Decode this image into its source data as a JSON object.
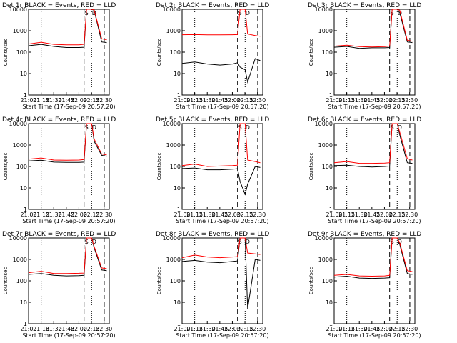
{
  "chart_data": [
    {
      "type": "line",
      "title": "Det 1r BLACK = Events, RED = LLD",
      "xlabel": "Start Time (17-Sep-09 20:57:20)",
      "ylabel": "Counts/sec",
      "xticks": [
        "21:00",
        "21:15",
        "21:30",
        "21:45",
        "22:00",
        "22:15",
        "22:30"
      ],
      "yticks": [
        "1",
        "10",
        "100",
        "1000",
        "10000"
      ],
      "ylim": [
        1,
        10000
      ],
      "yscale": "log",
      "markers": [
        "S",
        "D"
      ],
      "series": [
        {
          "color": "#000000",
          "x": [
            21.0,
            21.25,
            21.5,
            21.75,
            22.0,
            22.1,
            22.15,
            22.25,
            22.3,
            22.45,
            22.55
          ],
          "y": [
            200,
            230,
            185,
            165,
            165,
            170,
            10000,
            10000,
            9000,
            300,
            280
          ]
        },
        {
          "color": "#ff0000",
          "x": [
            21.0,
            21.25,
            21.5,
            21.75,
            22.0,
            22.1,
            22.15,
            22.25,
            22.3,
            22.45,
            22.55
          ],
          "y": [
            240,
            290,
            230,
            220,
            220,
            230,
            10000,
            10000,
            9500,
            420,
            380
          ]
        }
      ]
    },
    {
      "type": "line",
      "title": "Det 2r BLACK = Events, RED = LLD",
      "xlabel": "Start Time (17-Sep-09 20:57:20)",
      "ylabel": "Counts/sec",
      "xticks": [
        "21:00",
        "21:15",
        "21:30",
        "21:45",
        "22:00",
        "22:15",
        "22:30"
      ],
      "yticks": [
        "1",
        "10",
        "100",
        "1000",
        "10000"
      ],
      "ylim": [
        1,
        10000
      ],
      "yscale": "log",
      "markers": [
        "S",
        "D"
      ],
      "series": [
        {
          "color": "#000000",
          "x": [
            21.0,
            21.25,
            21.5,
            21.75,
            22.0,
            22.1,
            22.15,
            22.25,
            22.3,
            22.45,
            22.55
          ],
          "y": [
            30,
            35,
            28,
            25,
            28,
            32,
            20,
            15,
            4,
            50,
            40
          ]
        },
        {
          "color": "#ff0000",
          "x": [
            21.0,
            21.25,
            21.5,
            21.75,
            22.0,
            22.1,
            22.15,
            22.25,
            22.3,
            22.45,
            22.55
          ],
          "y": [
            650,
            660,
            640,
            640,
            650,
            660,
            10000,
            10000,
            700,
            600,
            550
          ]
        }
      ]
    },
    {
      "type": "line",
      "title": "Det 3r BLACK = Events, RED = LLD",
      "xlabel": "Start Time (17-Sep-09 20:57:20)",
      "ylabel": "Counts/sec",
      "xticks": [
        "21:00",
        "21:15",
        "21:30",
        "21:45",
        "22:00",
        "22:15",
        "22:30"
      ],
      "yticks": [
        "1",
        "10",
        "100",
        "1000",
        "10000"
      ],
      "ylim": [
        1,
        10000
      ],
      "yscale": "log",
      "markers": [
        "S",
        "D"
      ],
      "series": [
        {
          "color": "#000000",
          "x": [
            21.0,
            21.25,
            21.5,
            21.75,
            22.0,
            22.1,
            22.15,
            22.25,
            22.3,
            22.45,
            22.55
          ],
          "y": [
            170,
            185,
            150,
            160,
            160,
            165,
            10000,
            10000,
            7000,
            300,
            280
          ]
        },
        {
          "color": "#ff0000",
          "x": [
            21.0,
            21.25,
            21.5,
            21.75,
            22.0,
            22.1,
            22.15,
            22.25,
            22.3,
            22.45,
            22.55
          ],
          "y": [
            190,
            210,
            180,
            175,
            180,
            190,
            10000,
            10000,
            9000,
            360,
            320
          ]
        }
      ]
    },
    {
      "type": "line",
      "title": "Det 4r BLACK = Events, RED = LLD",
      "xlabel": "Start Time (17-Sep-09 20:57:20)",
      "ylabel": "Counts/sec",
      "xticks": [
        "21:00",
        "21:15",
        "21:30",
        "21:45",
        "22:00",
        "22:15",
        "22:30"
      ],
      "yticks": [
        "1",
        "10",
        "100",
        "1000",
        "10000"
      ],
      "ylim": [
        1,
        10000
      ],
      "yscale": "log",
      "markers": [
        "S",
        "D"
      ],
      "series": [
        {
          "color": "#000000",
          "x": [
            21.0,
            21.25,
            21.5,
            21.75,
            22.0,
            22.1,
            22.15,
            22.25,
            22.3,
            22.45,
            22.55
          ],
          "y": [
            180,
            195,
            160,
            155,
            155,
            160,
            10000,
            10000,
            1500,
            330,
            300
          ]
        },
        {
          "color": "#ff0000",
          "x": [
            21.0,
            21.25,
            21.5,
            21.75,
            22.0,
            22.1,
            22.15,
            22.25,
            22.3,
            22.45,
            22.55
          ],
          "y": [
            220,
            250,
            200,
            195,
            200,
            210,
            10000,
            10000,
            1900,
            380,
            350
          ]
        }
      ]
    },
    {
      "type": "line",
      "title": "Det 5r BLACK = Events, RED = LLD",
      "xlabel": "Start Time (17-Sep-09 20:57:20)",
      "ylabel": "Counts/sec",
      "xticks": [
        "21:00",
        "21:15",
        "21:30",
        "21:45",
        "22:00",
        "22:15",
        "22:30"
      ],
      "yticks": [
        "1",
        "10",
        "100",
        "1000",
        "10000"
      ],
      "ylim": [
        1,
        10000
      ],
      "yscale": "log",
      "markers": [
        "S",
        "D"
      ],
      "series": [
        {
          "color": "#000000",
          "x": [
            21.0,
            21.25,
            21.5,
            21.75,
            22.0,
            22.1,
            22.15,
            22.25,
            22.3,
            22.45,
            22.55
          ],
          "y": [
            80,
            85,
            70,
            70,
            75,
            78,
            20,
            5,
            15,
            100,
            90
          ]
        },
        {
          "color": "#ff0000",
          "x": [
            21.0,
            21.25,
            21.5,
            21.75,
            22.0,
            22.1,
            22.15,
            22.25,
            22.3,
            22.45,
            22.55
          ],
          "y": [
            110,
            130,
            100,
            105,
            110,
            115,
            10000,
            10000,
            200,
            170,
            150
          ]
        }
      ]
    },
    {
      "type": "line",
      "title": "Det 6r BLACK = Events, RED = LLD",
      "xlabel": "Start Time (17-Sep-09 20:57:20)",
      "ylabel": "Counts/sec",
      "xticks": [
        "21:00",
        "21:15",
        "21:30",
        "21:45",
        "22:00",
        "22:15",
        "22:30"
      ],
      "yticks": [
        "1",
        "10",
        "100",
        "1000",
        "10000"
      ],
      "ylim": [
        1,
        10000
      ],
      "yscale": "log",
      "markers": [
        "S",
        "D"
      ],
      "series": [
        {
          "color": "#000000",
          "x": [
            21.0,
            21.25,
            21.5,
            21.75,
            22.0,
            22.1,
            22.15,
            22.25,
            22.3,
            22.45,
            22.55
          ],
          "y": [
            110,
            115,
            100,
            95,
            100,
            105,
            10000,
            10000,
            3000,
            150,
            140
          ]
        },
        {
          "color": "#ff0000",
          "x": [
            21.0,
            21.25,
            21.5,
            21.75,
            22.0,
            22.1,
            22.15,
            22.25,
            22.3,
            22.45,
            22.55
          ],
          "y": [
            150,
            170,
            140,
            140,
            145,
            150,
            10000,
            10000,
            4000,
            230,
            200
          ]
        }
      ]
    },
    {
      "type": "line",
      "title": "Det 7r BLACK = Events, RED = LLD",
      "xlabel": "Start Time (17-Sep-09 20:57:20)",
      "ylabel": "Counts/sec",
      "xticks": [
        "21:00",
        "21:15",
        "21:30",
        "21:45",
        "22:00",
        "22:15",
        "22:30"
      ],
      "yticks": [
        "1",
        "10",
        "100",
        "1000",
        "10000"
      ],
      "ylim": [
        1,
        10000
      ],
      "yscale": "log",
      "markers": [
        "S",
        "D"
      ],
      "series": [
        {
          "color": "#000000",
          "x": [
            21.0,
            21.25,
            21.5,
            21.75,
            22.0,
            22.1,
            22.15,
            22.25,
            22.3,
            22.45,
            22.55
          ],
          "y": [
            200,
            220,
            180,
            170,
            175,
            180,
            10000,
            10000,
            3500,
            320,
            300
          ]
        },
        {
          "color": "#ff0000",
          "x": [
            21.0,
            21.25,
            21.5,
            21.75,
            22.0,
            22.1,
            22.15,
            22.25,
            22.3,
            22.45,
            22.55
          ],
          "y": [
            240,
            280,
            220,
            220,
            225,
            230,
            10000,
            10000,
            4000,
            400,
            370
          ]
        }
      ]
    },
    {
      "type": "line",
      "title": "Det 8r BLACK = Events, RED = LLD",
      "xlabel": "Start Time (17-Sep-09 20:57:20)",
      "ylabel": "Counts/sec",
      "xticks": [
        "21:00",
        "21:15",
        "21:30",
        "21:45",
        "22:00",
        "22:15",
        "22:30"
      ],
      "yticks": [
        "1",
        "10",
        "100",
        "1000",
        "10000"
      ],
      "ylim": [
        1,
        10000
      ],
      "yscale": "log",
      "markers": [
        "S",
        "D"
      ],
      "series": [
        {
          "color": "#000000",
          "x": [
            21.0,
            21.25,
            21.5,
            21.75,
            22.0,
            22.1,
            22.15,
            22.25,
            22.3,
            22.45,
            22.55
          ],
          "y": [
            800,
            900,
            750,
            700,
            800,
            850,
            10000,
            10000,
            5,
            1000,
            900
          ]
        },
        {
          "color": "#ff0000",
          "x": [
            21.0,
            21.25,
            21.5,
            21.75,
            22.0,
            22.1,
            22.15,
            22.25,
            22.3,
            22.45,
            22.55
          ],
          "y": [
            1200,
            1600,
            1300,
            1200,
            1300,
            1350,
            10000,
            10000,
            2000,
            1800,
            1700
          ]
        }
      ]
    },
    {
      "type": "line",
      "title": "Det 9r BLACK = Events, RED = LLD",
      "xlabel": "Start Time (17-Sep-09 20:57:20)",
      "ylabel": "Counts/sec",
      "xticks": [
        "21:00",
        "21:15",
        "21:30",
        "21:45",
        "22:00",
        "22:15",
        "22:30"
      ],
      "yticks": [
        "1",
        "10",
        "100",
        "1000",
        "10000"
      ],
      "ylim": [
        1,
        10000
      ],
      "yscale": "log",
      "markers": [
        "S",
        "D"
      ],
      "series": [
        {
          "color": "#000000",
          "x": [
            21.0,
            21.25,
            21.5,
            21.75,
            22.0,
            22.1,
            22.15,
            22.25,
            22.3,
            22.45,
            22.55
          ],
          "y": [
            150,
            165,
            135,
            130,
            135,
            140,
            10000,
            10000,
            5000,
            220,
            200
          ]
        },
        {
          "color": "#ff0000",
          "x": [
            21.0,
            21.25,
            21.5,
            21.75,
            22.0,
            22.1,
            22.15,
            22.25,
            22.3,
            22.45,
            22.55
          ],
          "y": [
            180,
            200,
            170,
            165,
            170,
            180,
            10000,
            10000,
            6000,
            300,
            270
          ]
        }
      ]
    }
  ]
}
